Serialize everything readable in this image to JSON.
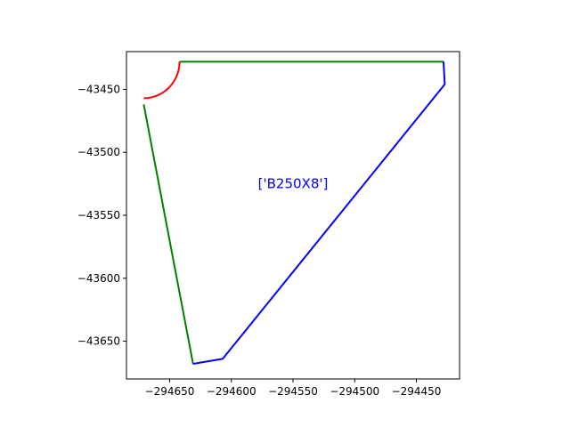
{
  "chart_data": {
    "type": "line",
    "title": "",
    "xlabel": "",
    "ylabel": "",
    "xlim": [
      -294685,
      -294415
    ],
    "ylim": [
      -43680,
      -43420
    ],
    "xticks": [
      -294650,
      -294600,
      -294550,
      -294500,
      -294450
    ],
    "xtick_labels": [
      "−294650",
      "−294600",
      "−294550",
      "−294500",
      "−294450"
    ],
    "yticks": [
      -43450,
      -43500,
      -43550,
      -43600,
      -43650
    ],
    "ytick_labels": [
      "−43450",
      "−43500",
      "−43550",
      "−43600",
      "−43650"
    ],
    "grid": false,
    "series": [
      {
        "color": "#008000",
        "points": [
          [
            -294642,
            -43428
          ],
          [
            -294428,
            -43428
          ]
        ]
      },
      {
        "color": "#008000",
        "points": [
          [
            -294671,
            -43462
          ],
          [
            -294631,
            -43668
          ]
        ]
      },
      {
        "color": "#0000ff",
        "points": [
          [
            -294428,
            -43428
          ],
          [
            -294427,
            -43446
          ],
          [
            -294607,
            -43664
          ],
          [
            -294631,
            -43668
          ]
        ]
      },
      {
        "color": "#ff0000",
        "arc": {
          "center": [
            -294671,
            -43428
          ],
          "radius": 29,
          "from_deg": 0,
          "to_deg": -90
        }
      }
    ],
    "annotations": [
      {
        "text": "['B250X8']",
        "x": -294550,
        "y": -43525,
        "color": "#0000ff"
      }
    ]
  }
}
